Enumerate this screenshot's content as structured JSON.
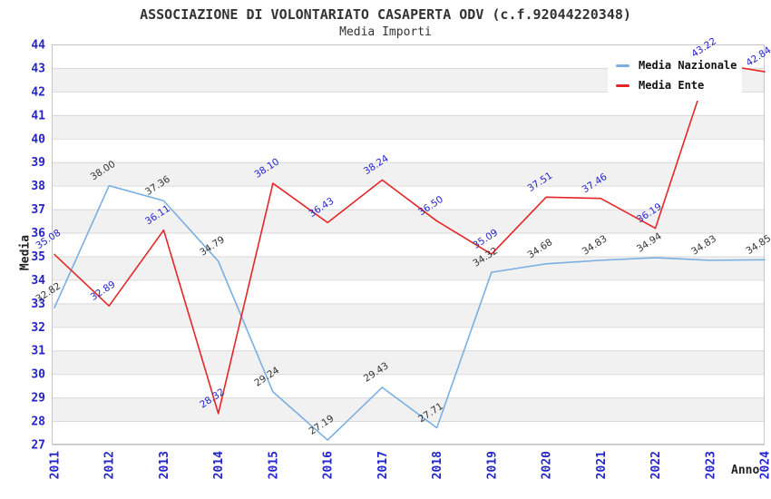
{
  "header": {
    "title": "ASSOCIAZIONE DI VOLONTARIATO CASAPERTA ODV (c.f.92044220348)",
    "subtitle": "Media Importi"
  },
  "chart_data": {
    "type": "line",
    "title": "ASSOCIAZIONE DI VOLONTARIATO CASAPERTA ODV (c.f.92044220348)",
    "subtitle": "Media Importi",
    "xlabel": "Anno",
    "ylabel": "Media",
    "ylim": [
      27,
      44
    ],
    "y_tick_step": 1,
    "grid": "horizontal-bands",
    "legend_position": "top-right",
    "x_categories": [
      "2011",
      "2012",
      "2013",
      "2014",
      "2015",
      "2016",
      "2017",
      "2018",
      "2019",
      "2020",
      "2021",
      "2022",
      "2023",
      "2024"
    ],
    "series": [
      {
        "name": "Media Nazionale",
        "color": "#79afe1",
        "label_color": "#333333",
        "values": [
          32.82,
          38.0,
          37.36,
          34.79,
          29.24,
          27.19,
          29.43,
          27.71,
          34.32,
          34.68,
          34.83,
          34.94,
          34.83,
          34.85
        ]
      },
      {
        "name": "Media Ente",
        "color": "#e62626",
        "label_color": "#2424cc",
        "values": [
          35.08,
          32.89,
          36.11,
          28.32,
          38.1,
          36.43,
          38.24,
          36.5,
          35.09,
          37.51,
          37.46,
          36.19,
          43.22,
          42.84
        ]
      }
    ],
    "value_label_format": "0.00",
    "colors": {
      "band_alt": "#f1f1f1",
      "band": "#ffffff",
      "gridline": "#d9d9d9",
      "plot_border": "#c6c6c6",
      "tick_label": "#2424cc",
      "background": "#ffffff"
    }
  }
}
